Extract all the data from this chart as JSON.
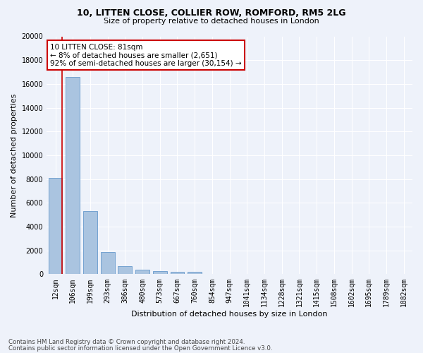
{
  "title1": "10, LITTEN CLOSE, COLLIER ROW, ROMFORD, RM5 2LG",
  "title2": "Size of property relative to detached houses in London",
  "xlabel": "Distribution of detached houses by size in London",
  "ylabel": "Number of detached properties",
  "categories": [
    "12sqm",
    "106sqm",
    "199sqm",
    "293sqm",
    "386sqm",
    "480sqm",
    "573sqm",
    "667sqm",
    "760sqm",
    "854sqm",
    "947sqm",
    "1041sqm",
    "1134sqm",
    "1228sqm",
    "1321sqm",
    "1415sqm",
    "1508sqm",
    "1602sqm",
    "1695sqm",
    "1789sqm",
    "1882sqm"
  ],
  "values": [
    8100,
    16600,
    5300,
    1850,
    700,
    370,
    280,
    210,
    200,
    0,
    0,
    0,
    0,
    0,
    0,
    0,
    0,
    0,
    0,
    0,
    0
  ],
  "bar_color": "#aac4e0",
  "bar_edge_color": "#6699cc",
  "vline_color": "#cc0000",
  "annotation_title": "10 LITTEN CLOSE: 81sqm",
  "annotation_line1": "← 8% of detached houses are smaller (2,651)",
  "annotation_line2": "92% of semi-detached houses are larger (30,154) →",
  "annotation_box_color": "#ffffff",
  "annotation_box_edge_color": "#cc0000",
  "ylim": [
    0,
    20000
  ],
  "yticks": [
    0,
    2000,
    4000,
    6000,
    8000,
    10000,
    12000,
    14000,
    16000,
    18000,
    20000
  ],
  "footnote1": "Contains HM Land Registry data © Crown copyright and database right 2024.",
  "footnote2": "Contains public sector information licensed under the Open Government Licence v3.0.",
  "bg_color": "#eef2fa",
  "grid_color": "#ffffff",
  "title_fontsize": 9,
  "subtitle_fontsize": 8,
  "ylabel_fontsize": 8,
  "xlabel_fontsize": 8,
  "tick_fontsize": 7,
  "annot_fontsize": 7.5
}
